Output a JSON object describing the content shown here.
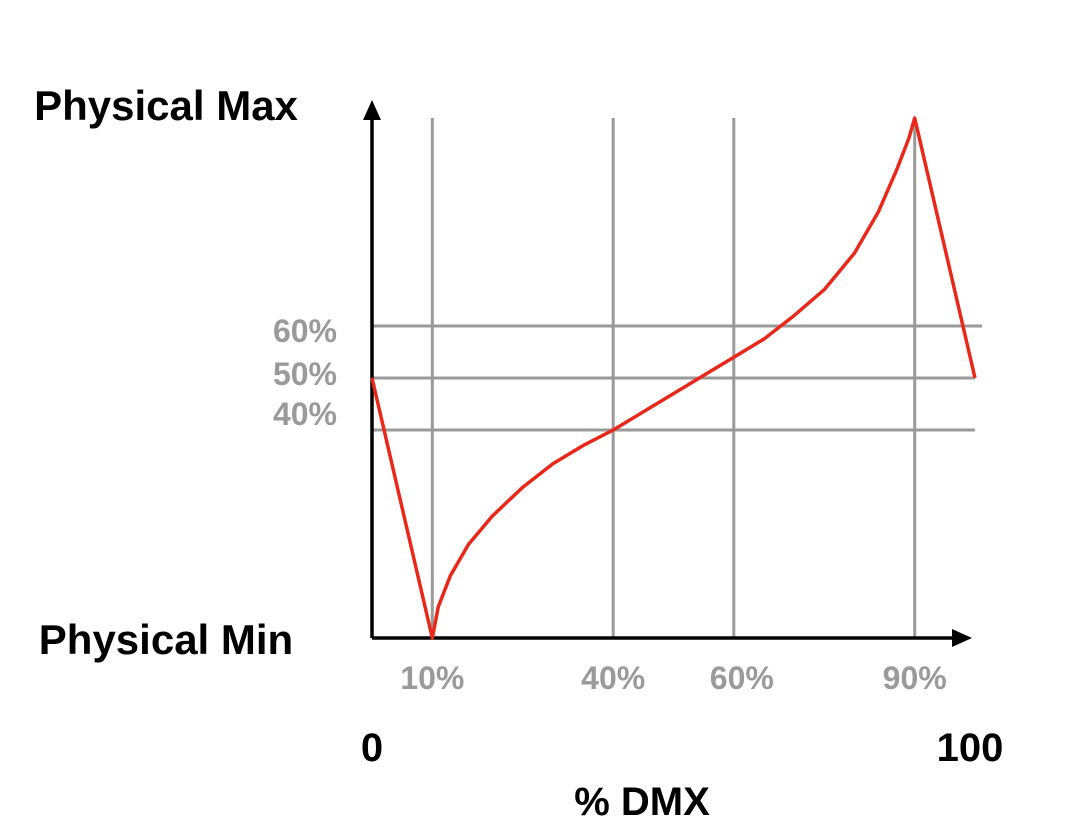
{
  "chart_data": {
    "type": "line",
    "title": "",
    "xlabel": "% DMX",
    "ylabel_top": "Physical Max",
    "ylabel_bottom": "Physical Min",
    "xlim": [
      0,
      100
    ],
    "ylim": [
      0,
      100
    ],
    "x_end_labels": [
      "0",
      "100"
    ],
    "x_gridlines": [
      {
        "value": 10,
        "label": "10%"
      },
      {
        "value": 40,
        "label": "40%"
      },
      {
        "value": 60,
        "label": "60%"
      },
      {
        "value": 90,
        "label": "90%"
      }
    ],
    "y_gridlines": [
      {
        "value": 60,
        "label": "60%"
      },
      {
        "value": 50,
        "label": "50%"
      },
      {
        "value": 40,
        "label": "40%"
      }
    ],
    "series": [
      {
        "color": "#e8281a",
        "x": [
          0,
          10,
          11,
          13,
          16,
          20,
          25,
          30,
          35,
          40,
          45,
          50,
          55,
          60,
          65,
          70,
          75,
          80,
          84,
          87,
          89,
          90,
          100
        ],
        "y": [
          50,
          0,
          6,
          12,
          18,
          23.5,
          29,
          33.5,
          37,
          40,
          43.5,
          47,
          50.5,
          54,
          57.5,
          62,
          67,
          74,
          82,
          90,
          96,
          100,
          50
        ]
      }
    ],
    "colors": {
      "curve": "#e8281a",
      "grid": "#9a9a9a",
      "axis": "#000000"
    }
  }
}
